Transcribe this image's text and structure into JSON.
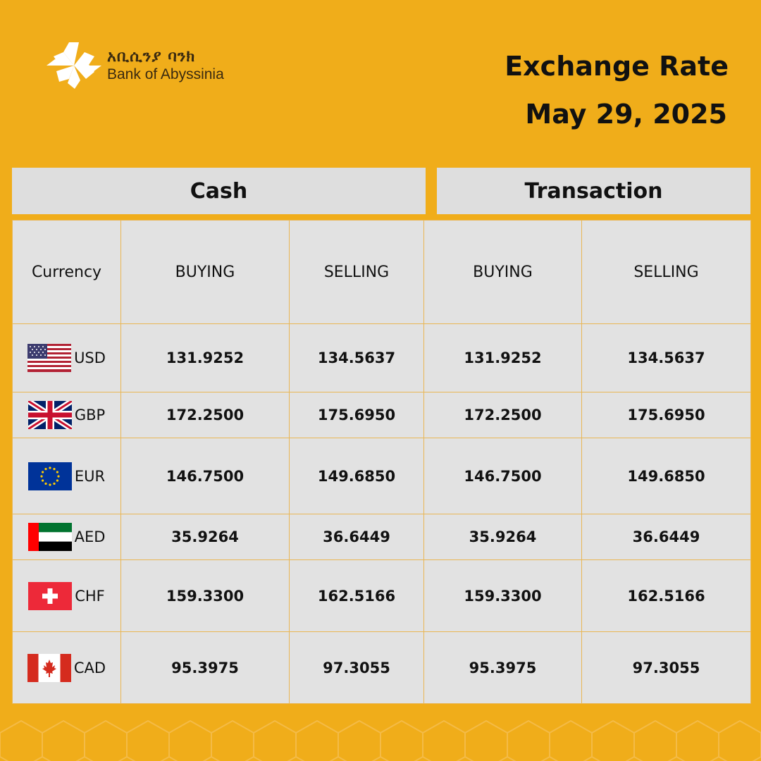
{
  "brand": {
    "name_amharic": "አቢሲንያ ባንክ",
    "name_english": "Bank of Abyssinia",
    "logo_icon": "star-flower-icon"
  },
  "header": {
    "title": "Exchange Rate",
    "date": "May 29, 2025"
  },
  "groups": {
    "cash": "Cash",
    "transaction": "Transaction"
  },
  "columns": {
    "currency": "Currency",
    "cash_buying": "BUYING",
    "cash_selling": "SELLING",
    "trans_buying": "BUYING",
    "trans_selling": "SELLING"
  },
  "rows": [
    {
      "code": "USD",
      "flag": "us-flag-icon",
      "cash_buying": "131.9252",
      "cash_selling": "134.5637",
      "trans_buying": "131.9252",
      "trans_selling": "134.5637"
    },
    {
      "code": "GBP",
      "flag": "uk-flag-icon",
      "cash_buying": "172.2500",
      "cash_selling": "175.6950",
      "trans_buying": "172.2500",
      "trans_selling": "175.6950"
    },
    {
      "code": "EUR",
      "flag": "eu-flag-icon",
      "cash_buying": "146.7500",
      "cash_selling": "149.6850",
      "trans_buying": "146.7500",
      "trans_selling": "149.6850"
    },
    {
      "code": "AED",
      "flag": "uae-flag-icon",
      "cash_buying": "35.9264",
      "cash_selling": "36.6449",
      "trans_buying": "35.9264",
      "trans_selling": "36.6449"
    },
    {
      "code": "CHF",
      "flag": "swiss-flag-icon",
      "cash_buying": "159.3300",
      "cash_selling": "162.5166",
      "trans_buying": "159.3300",
      "trans_selling": "162.5166"
    },
    {
      "code": "CAD",
      "flag": "canada-flag-icon",
      "cash_buying": "95.3975",
      "cash_selling": "97.3055",
      "trans_buying": "95.3975",
      "trans_selling": "97.3055"
    }
  ],
  "colors": {
    "background": "#F0AD1A",
    "table_bg": "#E2E2E2",
    "table_border": "#E9B654"
  }
}
